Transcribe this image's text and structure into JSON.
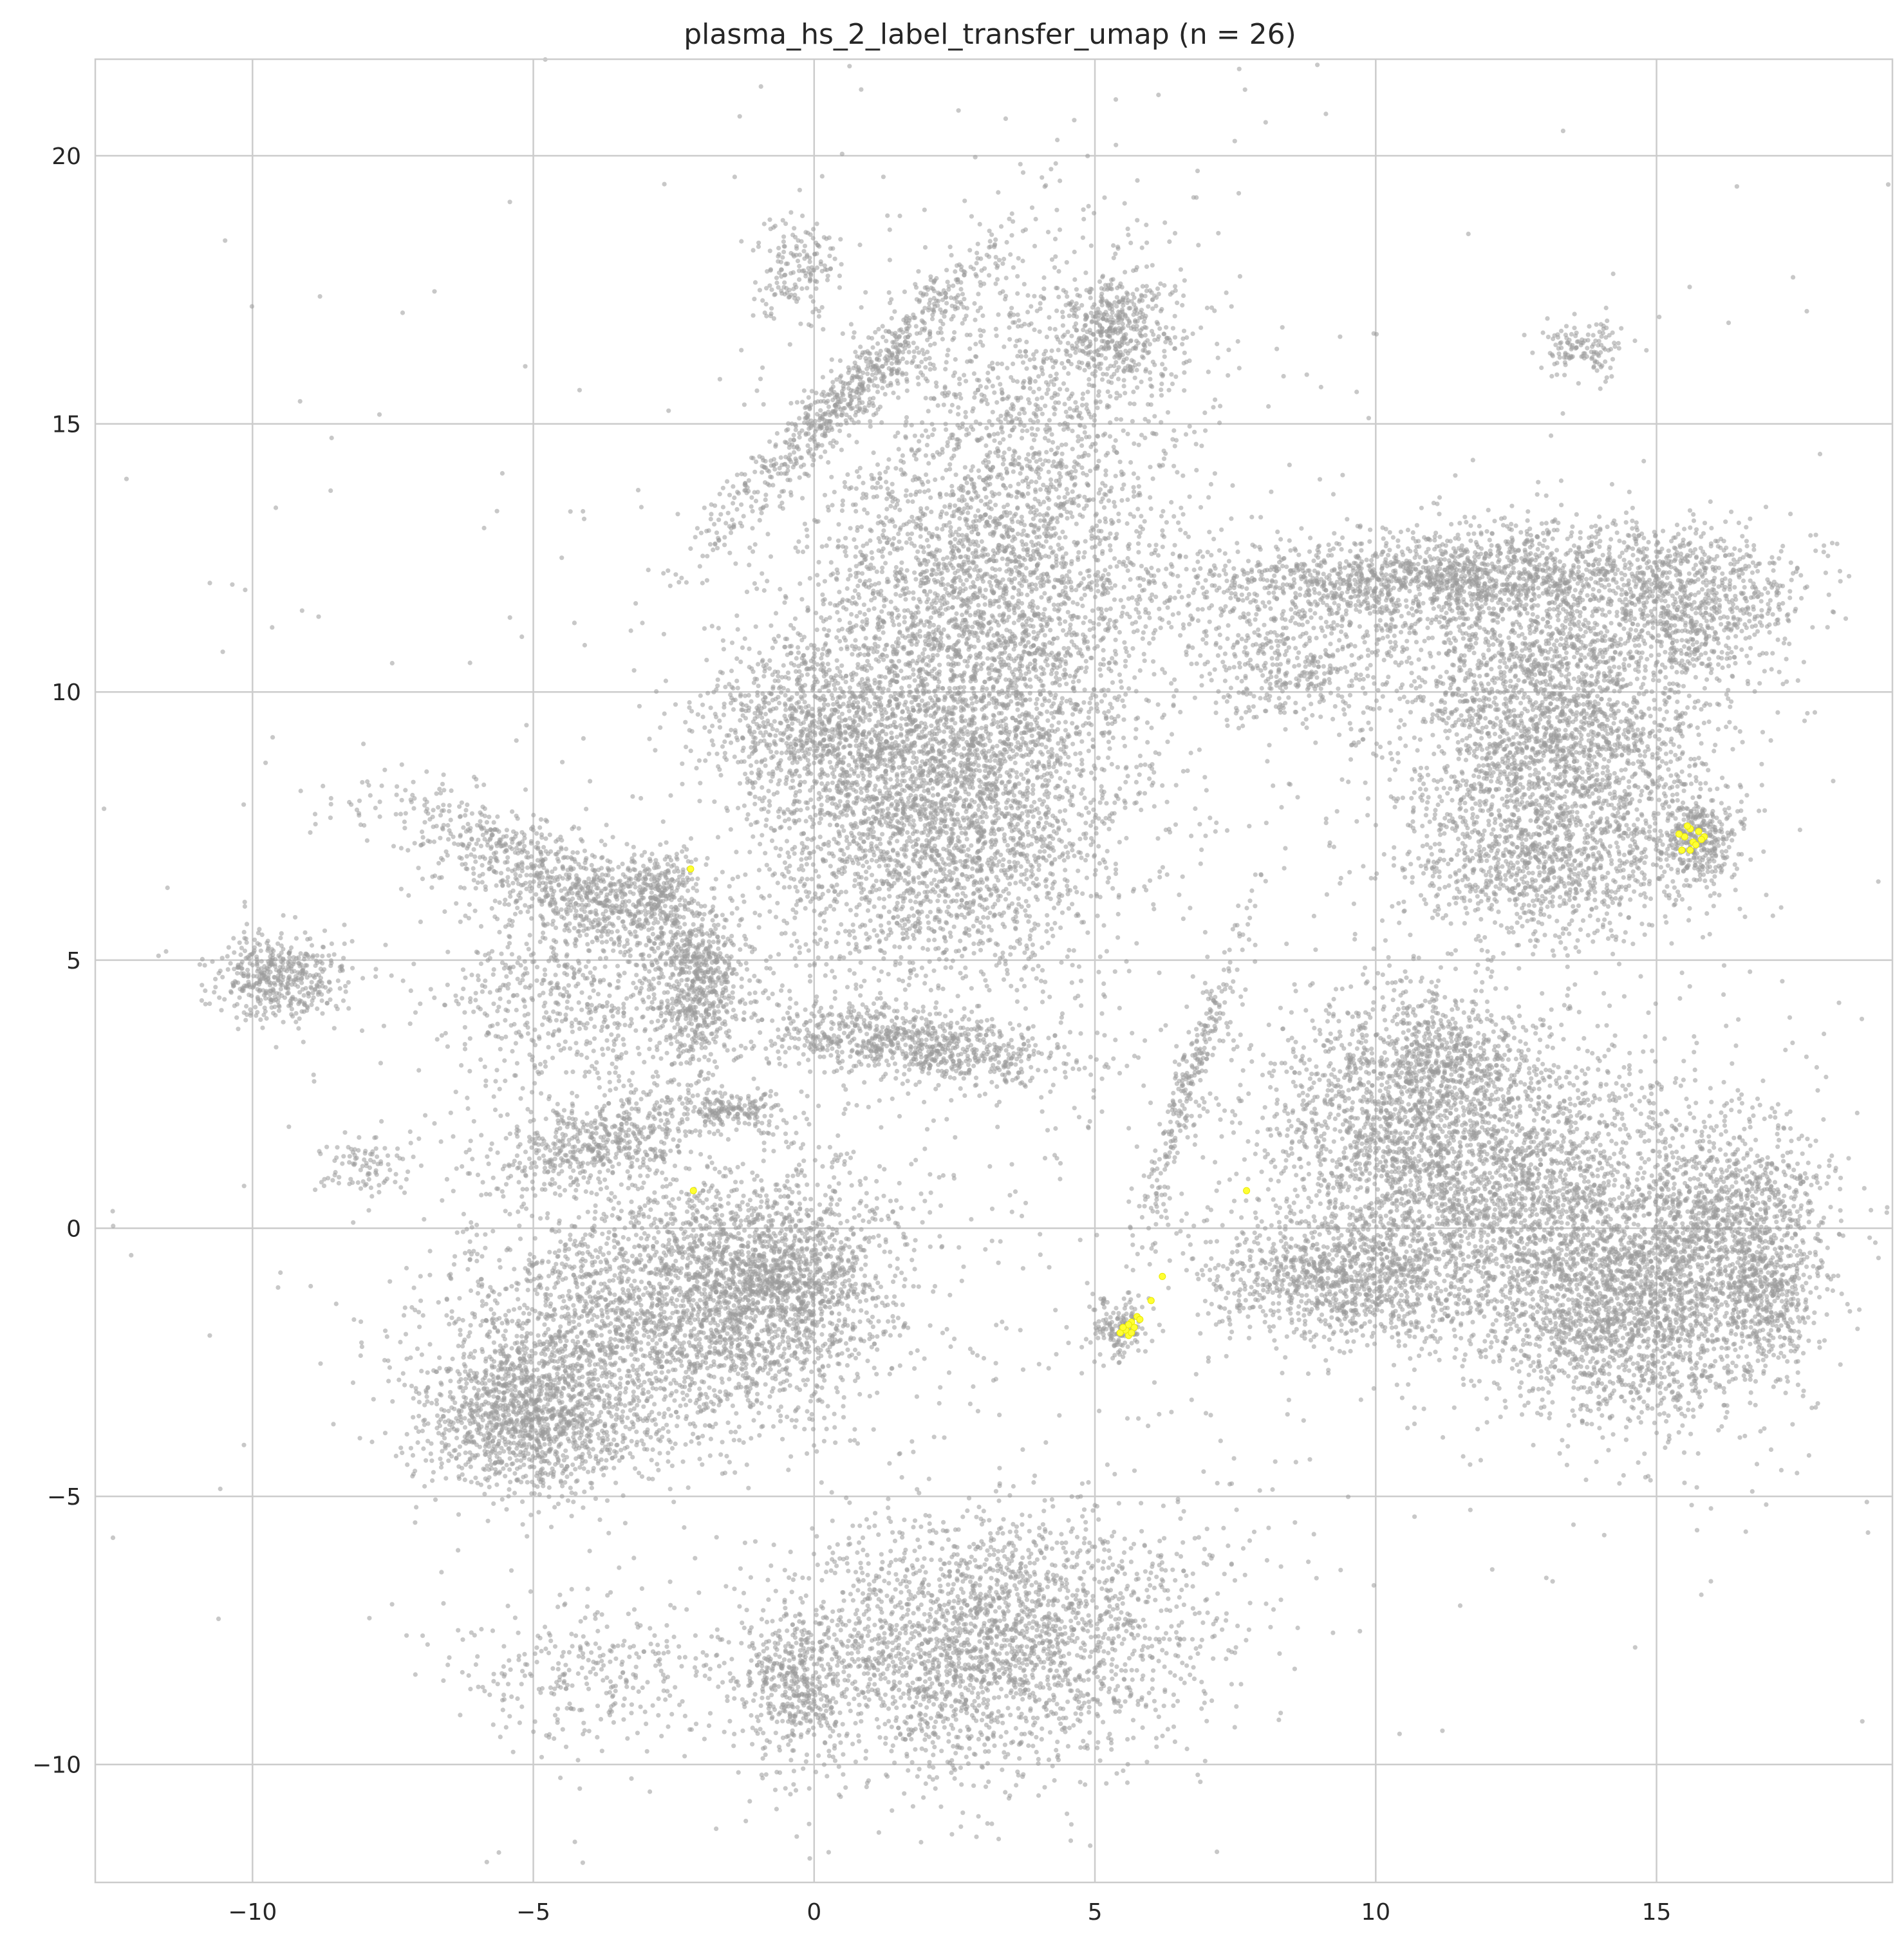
{
  "chart_data": {
    "type": "scatter",
    "title": "plasma_hs_2_label_transfer_umap (n = 26)",
    "xlabel": "",
    "ylabel": "",
    "xlim": [
      -12.8,
      19.2
    ],
    "ylim": [
      -12.2,
      21.8
    ],
    "xticks": [
      -10,
      -5,
      0,
      5,
      10,
      15
    ],
    "yticks": [
      -10,
      -5,
      0,
      5,
      10,
      15,
      20
    ],
    "xtick_labels": [
      "−10",
      "−5",
      "0",
      "5",
      "10",
      "15"
    ],
    "ytick_labels": [
      "−10",
      "−5",
      "0",
      "5",
      "10",
      "15",
      "20"
    ],
    "grid": true,
    "colors": {
      "background": "#9a9a9a",
      "highlight": "#ffff33",
      "grid": "#cccccc",
      "text": "#262626"
    },
    "background_clusters": [
      {
        "name": "central-large",
        "cx": 2.9,
        "cy": 11.0,
        "sx": 1.6,
        "sy": 3.2,
        "rot": -0.2,
        "n": 5200
      },
      {
        "name": "central-top",
        "cx": 5.3,
        "cy": 16.8,
        "sx": 0.6,
        "sy": 0.5,
        "rot": 0,
        "n": 450
      },
      {
        "name": "central-lower",
        "cx": 2.2,
        "cy": 7.5,
        "sx": 1.5,
        "sy": 1.3,
        "rot": 0,
        "n": 1500
      },
      {
        "name": "central-left",
        "cx": 0.0,
        "cy": 9.3,
        "sx": 1.0,
        "sy": 0.8,
        "rot": 0,
        "n": 700
      },
      {
        "name": "diag-streak",
        "cx": 0.6,
        "cy": 15.5,
        "sx": 0.25,
        "sy": 1.9,
        "rot": -0.75,
        "n": 700
      },
      {
        "name": "top-small",
        "cx": -0.3,
        "cy": 18.0,
        "sx": 0.4,
        "sy": 0.5,
        "rot": 0,
        "n": 160
      },
      {
        "name": "upper-right-arc",
        "cx": 11.2,
        "cy": 12.1,
        "sx": 2.4,
        "sy": 0.45,
        "rot": 0.05,
        "n": 1800
      },
      {
        "name": "upper-right-body",
        "cx": 13.2,
        "cy": 9.4,
        "sx": 1.3,
        "sy": 1.5,
        "rot": 0.55,
        "n": 2600
      },
      {
        "name": "upper-right-low",
        "cx": 13.0,
        "cy": 6.8,
        "sx": 1.3,
        "sy": 0.7,
        "rot": 0,
        "n": 900
      },
      {
        "name": "upper-right-far",
        "cx": 15.5,
        "cy": 11.6,
        "sx": 1.0,
        "sy": 0.7,
        "rot": 0,
        "n": 800
      },
      {
        "name": "upper-right-left",
        "cx": 8.6,
        "cy": 10.4,
        "sx": 0.9,
        "sy": 0.5,
        "rot": 0,
        "n": 350
      },
      {
        "name": "right-small",
        "cx": 15.8,
        "cy": 7.3,
        "sx": 0.35,
        "sy": 0.45,
        "rot": 0,
        "n": 320
      },
      {
        "name": "top-right-small",
        "cx": 13.7,
        "cy": 16.4,
        "sx": 0.4,
        "sy": 0.25,
        "rot": 0,
        "n": 130
      },
      {
        "name": "lower-right-a",
        "cx": 10.3,
        "cy": 1.9,
        "sx": 1.2,
        "sy": 1.3,
        "rot": 0,
        "n": 1600
      },
      {
        "name": "lower-right-b",
        "cx": 12.7,
        "cy": 0.6,
        "sx": 1.4,
        "sy": 1.5,
        "rot": 0,
        "n": 1900
      },
      {
        "name": "lower-right-c",
        "cx": 14.6,
        "cy": -1.4,
        "sx": 1.3,
        "sy": 1.1,
        "rot": 0,
        "n": 2100
      },
      {
        "name": "lower-right-d",
        "cx": 9.4,
        "cy": -0.9,
        "sx": 1.2,
        "sy": 0.6,
        "rot": 0,
        "n": 1100
      },
      {
        "name": "lower-right-e",
        "cx": 16.4,
        "cy": 0.3,
        "sx": 0.9,
        "sy": 0.9,
        "rot": 0,
        "n": 900
      },
      {
        "name": "lower-right-f",
        "cx": 17.0,
        "cy": -1.3,
        "sx": 0.4,
        "sy": 0.8,
        "rot": 0,
        "n": 350
      },
      {
        "name": "lower-right-g",
        "cx": 11.3,
        "cy": 3.3,
        "sx": 0.6,
        "sy": 0.5,
        "rot": 0,
        "n": 300
      },
      {
        "name": "vertical-streak",
        "cx": 6.7,
        "cy": 2.7,
        "sx": 0.15,
        "sy": 1.5,
        "rot": -0.3,
        "n": 280
      },
      {
        "name": "small-center",
        "cx": 5.4,
        "cy": -1.9,
        "sx": 0.22,
        "sy": 0.3,
        "rot": 0,
        "n": 140
      },
      {
        "name": "mid-elongated",
        "cx": 1.8,
        "cy": 3.4,
        "sx": 1.5,
        "sy": 0.3,
        "rot": -0.12,
        "n": 800
      },
      {
        "name": "left-arc-top",
        "cx": -4.2,
        "cy": 6.3,
        "sx": 1.8,
        "sy": 0.45,
        "rot": -0.45,
        "n": 1000
      },
      {
        "name": "left-arc-side",
        "cx": -2.1,
        "cy": 4.4,
        "sx": 0.35,
        "sy": 0.8,
        "rot": 0,
        "n": 500
      },
      {
        "name": "left-arc-fill",
        "cx": -4.4,
        "cy": 4.3,
        "sx": 1.2,
        "sy": 1.0,
        "rot": 0,
        "n": 600
      },
      {
        "name": "small-left-top",
        "cx": -2.7,
        "cy": 6.4,
        "sx": 0.35,
        "sy": 0.35,
        "rot": 0,
        "n": 200
      },
      {
        "name": "far-left",
        "cx": -9.5,
        "cy": 4.7,
        "sx": 0.6,
        "sy": 0.4,
        "rot": 0,
        "n": 450
      },
      {
        "name": "left-lower-main",
        "cx": -2.5,
        "cy": -1.5,
        "sx": 2.0,
        "sy": 1.3,
        "rot": 0.2,
        "n": 3000
      },
      {
        "name": "left-lower-bottom",
        "cx": -5.1,
        "cy": -3.5,
        "sx": 0.9,
        "sy": 0.7,
        "rot": 0,
        "n": 1200
      },
      {
        "name": "left-lower-right",
        "cx": -0.6,
        "cy": -1.0,
        "sx": 0.9,
        "sy": 0.8,
        "rot": 0,
        "n": 900
      },
      {
        "name": "left-streak-upper",
        "cx": -3.8,
        "cy": 1.6,
        "sx": 1.0,
        "sy": 0.35,
        "rot": 0.25,
        "n": 500
      },
      {
        "name": "left-small-streak",
        "cx": -1.5,
        "cy": 2.2,
        "sx": 0.5,
        "sy": 0.15,
        "rot": 0,
        "n": 160
      },
      {
        "name": "far-left-small",
        "cx": -8.0,
        "cy": 1.1,
        "sx": 0.4,
        "sy": 0.3,
        "rot": 0,
        "n": 90
      },
      {
        "name": "bottom-main",
        "cx": 3.0,
        "cy": -7.8,
        "sx": 2.0,
        "sy": 1.2,
        "rot": 0.15,
        "n": 2600
      },
      {
        "name": "bottom-left",
        "cx": -0.4,
        "cy": -8.6,
        "sx": 0.45,
        "sy": 0.7,
        "rot": 0,
        "n": 350
      },
      {
        "name": "bottom-far-left",
        "cx": -4.0,
        "cy": -8.3,
        "sx": 1.2,
        "sy": 0.7,
        "rot": 0,
        "n": 300
      },
      {
        "name": "scatter-noise",
        "cx": 4.0,
        "cy": 4.0,
        "sx": 7.5,
        "sy": 7.5,
        "rot": 0,
        "n": 1100
      }
    ],
    "highlight_points": [
      {
        "x": 15.6,
        "y": 7.45
      },
      {
        "x": 15.75,
        "y": 7.4
      },
      {
        "x": 15.5,
        "y": 7.3
      },
      {
        "x": 15.85,
        "y": 7.3
      },
      {
        "x": 15.65,
        "y": 7.2
      },
      {
        "x": 15.45,
        "y": 7.05
      },
      {
        "x": 15.6,
        "y": 7.05
      },
      {
        "x": 15.7,
        "y": 7.15
      },
      {
        "x": 15.4,
        "y": 7.35
      },
      {
        "x": 15.55,
        "y": 7.5
      },
      {
        "x": 15.8,
        "y": 7.25
      },
      {
        "x": -2.2,
        "y": 6.7
      },
      {
        "x": -2.15,
        "y": 0.7
      },
      {
        "x": 7.7,
        "y": 0.7
      },
      {
        "x": 6.2,
        "y": -0.9
      },
      {
        "x": 6.0,
        "y": -1.35
      },
      {
        "x": 5.75,
        "y": -1.65
      },
      {
        "x": 5.65,
        "y": -1.75
      },
      {
        "x": 5.7,
        "y": -1.85
      },
      {
        "x": 5.55,
        "y": -1.9
      },
      {
        "x": 5.6,
        "y": -1.8
      },
      {
        "x": 5.45,
        "y": -1.95
      },
      {
        "x": 5.6,
        "y": -2.0
      },
      {
        "x": 5.8,
        "y": -1.7
      },
      {
        "x": 5.5,
        "y": -1.85
      },
      {
        "x": 5.65,
        "y": -1.95
      }
    ]
  }
}
